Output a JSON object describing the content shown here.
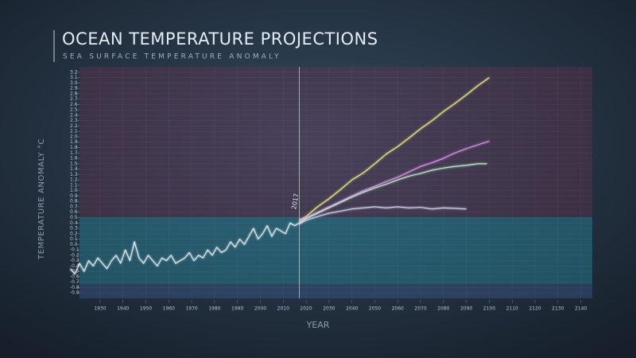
{
  "chart_data": {
    "type": "line",
    "title": "OCEAN TEMPERATURE PROJECTIONS",
    "subtitle": "SEA SURFACE TEMPERATURE ANOMALY",
    "x_label": "YEAR",
    "y_label": "TEMPERATURE ANOMALY °C",
    "xlim": [
      1921,
      2145
    ],
    "ylim": [
      -1.0,
      3.3
    ],
    "xticks": [
      1930,
      1940,
      1950,
      1960,
      1970,
      1980,
      1990,
      2000,
      2010,
      2020,
      2030,
      2040,
      2050,
      2060,
      2070,
      2080,
      2090,
      2100,
      2110,
      2120,
      2130,
      2140
    ],
    "yticks": [
      -0.9,
      -0.8,
      -0.7,
      -0.6,
      -0.5,
      -0.4,
      -0.3,
      -0.2,
      -0.1,
      {
        "value": 0,
        "label": "0.0"
      },
      0.1,
      0.2,
      0.3,
      0.4,
      0.5,
      0.6,
      0.7,
      0.8,
      0.9,
      {
        "value": 1,
        "label": "1.0"
      },
      1.1,
      1.2,
      1.3,
      1.4,
      1.5,
      1.6,
      1.7,
      1.8,
      1.9,
      {
        "value": 2,
        "label": "2.0"
      },
      2.1,
      2.2,
      2.3,
      2.4,
      2.5,
      2.6,
      2.7,
      2.8,
      2.9,
      {
        "value": 3,
        "label": "3.0"
      },
      3.1,
      3.2
    ],
    "grid": true,
    "annotations": [
      {
        "x": 2017
      }
    ],
    "series": [
      {
        "color": "#e6edf2",
        "x": [
          1917,
          1919,
          1921,
          1923,
          1925,
          1927,
          1929,
          1931,
          1933,
          1935,
          1937,
          1939,
          1941,
          1943,
          1945,
          1947,
          1949,
          1951,
          1953,
          1955,
          1957,
          1959,
          1961,
          1963,
          1965,
          1967,
          1969,
          1971,
          1973,
          1975,
          1977,
          1979,
          1981,
          1983,
          1985,
          1987,
          1989,
          1991,
          1993,
          1995,
          1997,
          1999,
          2001,
          2003,
          2005,
          2007,
          2009,
          2011,
          2013,
          2015,
          2017
        ],
        "values": [
          -0.45,
          -0.55,
          -0.35,
          -0.5,
          -0.3,
          -0.4,
          -0.25,
          -0.35,
          -0.45,
          -0.3,
          -0.2,
          -0.35,
          -0.1,
          -0.3,
          0.05,
          -0.25,
          -0.35,
          -0.2,
          -0.3,
          -0.4,
          -0.25,
          -0.3,
          -0.2,
          -0.35,
          -0.3,
          -0.25,
          -0.15,
          -0.3,
          -0.2,
          -0.25,
          -0.1,
          -0.2,
          -0.05,
          -0.15,
          -0.1,
          0.05,
          -0.05,
          0.1,
          0.0,
          0.15,
          0.3,
          0.1,
          0.2,
          0.35,
          0.15,
          0.3,
          0.25,
          0.2,
          0.4,
          0.35,
          0.4
        ]
      },
      {
        "color": "#f2f07a",
        "x": [
          2017,
          2020,
          2025,
          2030,
          2035,
          2040,
          2045,
          2050,
          2055,
          2060,
          2065,
          2070,
          2075,
          2080,
          2085,
          2090,
          2095,
          2100
        ],
        "values": [
          0.45,
          0.52,
          0.7,
          0.85,
          1.02,
          1.2,
          1.33,
          1.5,
          1.68,
          1.82,
          1.98,
          2.15,
          2.3,
          2.47,
          2.62,
          2.78,
          2.95,
          3.1
        ]
      },
      {
        "color": "#e28ef0",
        "x": [
          2017,
          2020,
          2025,
          2030,
          2035,
          2040,
          2045,
          2050,
          2055,
          2060,
          2065,
          2070,
          2075,
          2080,
          2085,
          2090,
          2095,
          2100
        ],
        "values": [
          0.42,
          0.5,
          0.6,
          0.7,
          0.8,
          0.9,
          1.0,
          1.08,
          1.17,
          1.25,
          1.35,
          1.45,
          1.52,
          1.6,
          1.7,
          1.78,
          1.85,
          1.92
        ]
      },
      {
        "color": "#bdf3c9",
        "x": [
          2017,
          2020,
          2025,
          2030,
          2035,
          2040,
          2045,
          2050,
          2055,
          2060,
          2065,
          2070,
          2075,
          2080,
          2085,
          2090,
          2095,
          2099
        ],
        "values": [
          0.4,
          0.48,
          0.58,
          0.68,
          0.78,
          0.88,
          0.97,
          1.05,
          1.12,
          1.2,
          1.27,
          1.32,
          1.38,
          1.42,
          1.45,
          1.47,
          1.5,
          1.5
        ]
      },
      {
        "color": "#d8d3f6",
        "x": [
          2017,
          2020,
          2025,
          2030,
          2035,
          2040,
          2045,
          2050,
          2055,
          2060,
          2065,
          2070,
          2075,
          2080,
          2085,
          2090
        ],
        "values": [
          0.38,
          0.45,
          0.52,
          0.58,
          0.62,
          0.66,
          0.68,
          0.7,
          0.68,
          0.7,
          0.68,
          0.69,
          0.66,
          0.68,
          0.67,
          0.66
        ]
      }
    ]
  }
}
